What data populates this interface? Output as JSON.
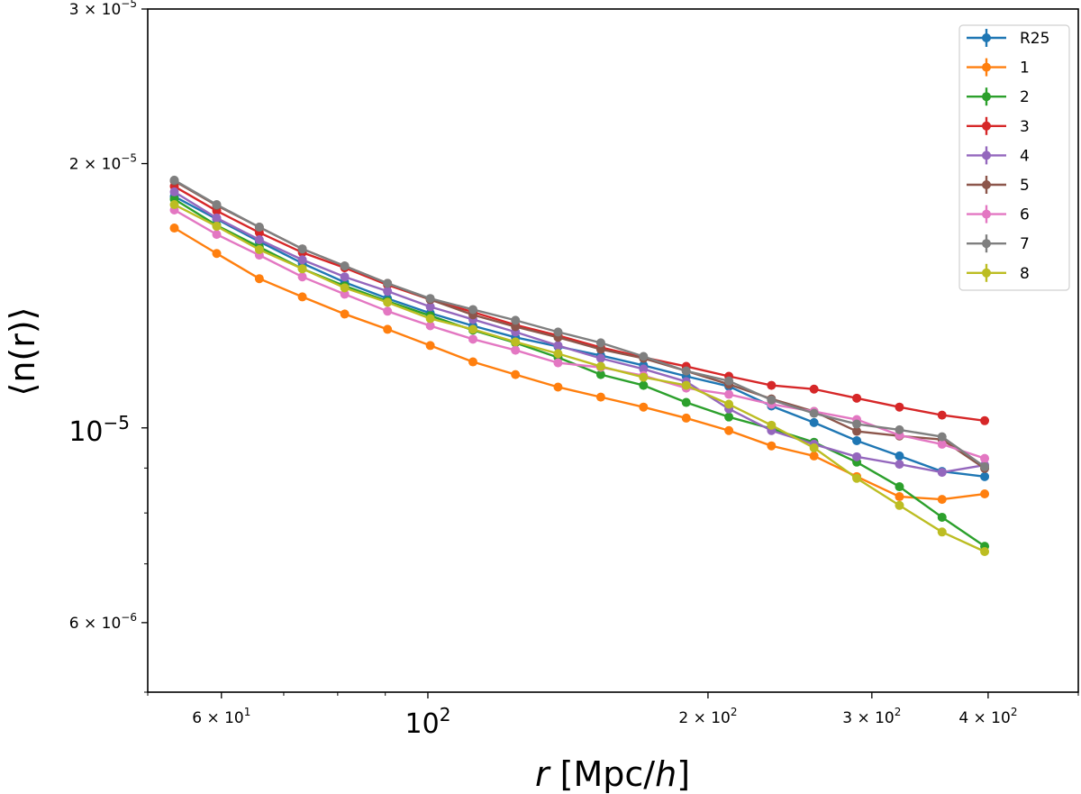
{
  "chart_data": {
    "type": "line",
    "xscale": "log",
    "yscale": "log",
    "xlim": [
      50,
      500
    ],
    "ylim": [
      5e-06,
      3e-05
    ],
    "xlabel": {
      "italic_var": "r",
      "unit_prefix": " [Mpc/",
      "unit_var": "h",
      "unit_suffix": "]"
    },
    "ylabel": "⟨n(r)⟩",
    "grid": false,
    "legend_position": "top-right",
    "x_ticks": [
      {
        "value": 60,
        "base": "6 × 10",
        "exp": "1",
        "size": "small"
      },
      {
        "value": 100,
        "base": "10",
        "exp": "2",
        "size": "big"
      },
      {
        "value": 200,
        "base": "2 × 10",
        "exp": "2",
        "size": "small"
      },
      {
        "value": 300,
        "base": "3 × 10",
        "exp": "2",
        "size": "small"
      },
      {
        "value": 400,
        "base": "4 × 10",
        "exp": "2",
        "size": "small"
      }
    ],
    "x_minor_ticks": [
      50,
      70,
      80,
      90,
      500
    ],
    "y_ticks": [
      {
        "value": 3e-05,
        "base": "3 × 10",
        "exp": "−5",
        "size": "small"
      },
      {
        "value": 2e-05,
        "base": "2 × 10",
        "exp": "−5",
        "size": "small"
      },
      {
        "value": 1e-05,
        "base": "10",
        "exp": "−5",
        "size": "big"
      },
      {
        "value": 6e-06,
        "base": "6 × 10",
        "exp": "−6",
        "size": "small"
      }
    ],
    "y_minor_ticks": [
      5e-06,
      7e-06,
      8e-06,
      9e-06
    ],
    "x": [
      53.4,
      59.3,
      65.9,
      73.3,
      81.4,
      90.5,
      100.6,
      111.8,
      124.2,
      138.0,
      153.4,
      170.5,
      189.5,
      210.6,
      234.0,
      260.0,
      289.0,
      321.2,
      356.9,
      396.6
    ],
    "series": [
      {
        "name": "R25",
        "color": "#1f77b4",
        "y": [
          1.835e-05,
          1.729e-05,
          1.63e-05,
          1.54e-05,
          1.465e-05,
          1.404e-05,
          1.351e-05,
          1.307e-05,
          1.268e-05,
          1.238e-05,
          1.209e-05,
          1.178e-05,
          1.145e-05,
          1.115e-05,
          1.059e-05,
          1.014e-05,
          9.67e-06,
          9.29e-06,
          8.92e-06,
          8.8e-06
        ]
      },
      {
        "name": "1",
        "color": "#ff7f0e",
        "y": [
          1.689e-05,
          1.58e-05,
          1.479e-05,
          1.41e-05,
          1.348e-05,
          1.295e-05,
          1.241e-05,
          1.189e-05,
          1.15e-05,
          1.113e-05,
          1.084e-05,
          1.056e-05,
          1.026e-05,
          9.93e-06,
          9.54e-06,
          9.29e-06,
          8.8e-06,
          8.35e-06,
          8.29e-06,
          8.41e-06
        ]
      },
      {
        "name": "2",
        "color": "#2ca02c",
        "y": [
          1.822e-05,
          1.701e-05,
          1.607e-05,
          1.518e-05,
          1.451e-05,
          1.394e-05,
          1.342e-05,
          1.292e-05,
          1.25e-05,
          1.203e-05,
          1.15e-05,
          1.118e-05,
          1.069e-05,
          1.029e-05,
          9.98e-06,
          9.63e-06,
          9.14e-06,
          8.57e-06,
          7.91e-06,
          7.33e-06
        ]
      },
      {
        "name": "3",
        "color": "#d62728",
        "y": [
          1.884e-05,
          1.767e-05,
          1.669e-05,
          1.584e-05,
          1.522e-05,
          1.455e-05,
          1.4e-05,
          1.355e-05,
          1.31e-05,
          1.274e-05,
          1.235e-05,
          1.203e-05,
          1.175e-05,
          1.145e-05,
          1.118e-05,
          1.107e-05,
          1.081e-05,
          1.056e-05,
          1.034e-05,
          1.019e-05
        ]
      },
      {
        "name": "4",
        "color": "#9467bd",
        "y": [
          1.857e-05,
          1.734e-05,
          1.638e-05,
          1.554e-05,
          1.486e-05,
          1.431e-05,
          1.374e-05,
          1.329e-05,
          1.286e-05,
          1.241e-05,
          1.2e-05,
          1.167e-05,
          1.129e-05,
          1.051e-05,
          9.93e-06,
          9.58e-06,
          9.27e-06,
          9.09e-06,
          8.9e-06,
          9.07e-06
        ]
      },
      {
        "name": "5",
        "color": "#8c564b",
        "y": [
          1.911e-05,
          1.792e-05,
          1.693e-05,
          1.599e-05,
          1.529e-05,
          1.461e-05,
          1.4e-05,
          1.345e-05,
          1.304e-05,
          1.268e-05,
          1.229e-05,
          1.2e-05,
          1.161e-05,
          1.121e-05,
          1.079e-05,
          1.044e-05,
          9.91e-06,
          9.79e-06,
          9.7e-06,
          8.99e-06
        ]
      },
      {
        "name": "6",
        "color": "#e377c2",
        "y": [
          1.771e-05,
          1.661e-05,
          1.573e-05,
          1.486e-05,
          1.42e-05,
          1.358e-05,
          1.307e-05,
          1.262e-05,
          1.226e-05,
          1.186e-05,
          1.172e-05,
          1.147e-05,
          1.11e-05,
          1.092e-05,
          1.064e-05,
          1.044e-05,
          1.022e-05,
          9.81e-06,
          9.58e-06,
          9.23e-06
        ]
      },
      {
        "name": "7",
        "color": "#7f7f7f",
        "y": [
          1.915e-05,
          1.796e-05,
          1.693e-05,
          1.599e-05,
          1.529e-05,
          1.461e-05,
          1.404e-05,
          1.364e-05,
          1.326e-05,
          1.286e-05,
          1.25e-05,
          1.206e-05,
          1.161e-05,
          1.131e-05,
          1.076e-05,
          1.039e-05,
          1.01e-05,
          9.95e-06,
          9.77e-06,
          9.03e-06
        ]
      },
      {
        "name": "8",
        "color": "#bcbd22",
        "y": [
          1.796e-05,
          1.697e-05,
          1.596e-05,
          1.518e-05,
          1.444e-05,
          1.39e-05,
          1.332e-05,
          1.295e-05,
          1.253e-05,
          1.215e-05,
          1.175e-05,
          1.142e-05,
          1.118e-05,
          1.064e-05,
          1.007e-05,
          9.49e-06,
          8.76e-06,
          8.16e-06,
          7.61e-06,
          7.23e-06
        ]
      }
    ]
  }
}
